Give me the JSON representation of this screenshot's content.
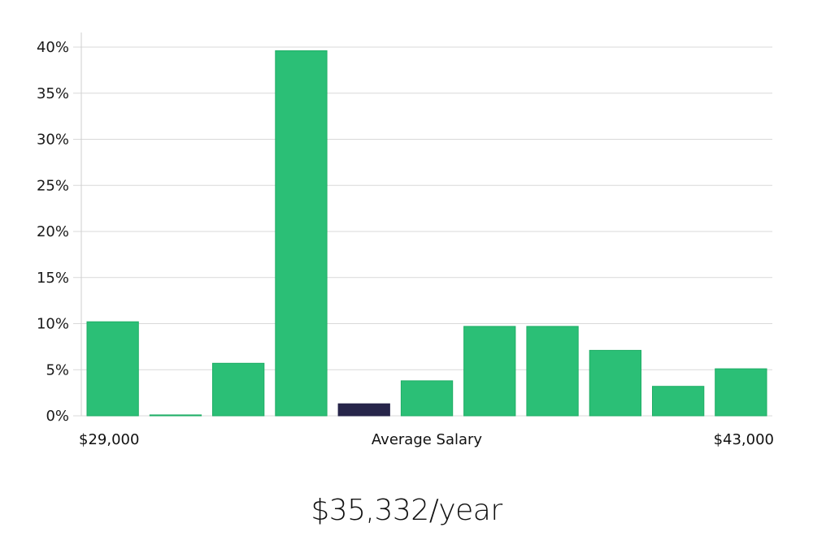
{
  "chart_data": {
    "type": "bar",
    "title": "",
    "xlabel": "Average Salary",
    "ylabel": "",
    "x_range_labels": {
      "min": "$29,000",
      "max": "$43,000"
    },
    "ylim": [
      0,
      42
    ],
    "yticks": [
      0,
      5,
      10,
      15,
      20,
      25,
      30,
      35,
      40
    ],
    "ytick_labels": [
      "0%",
      "5%",
      "10%",
      "15%",
      "20%",
      "25%",
      "30%",
      "35%",
      "40%"
    ],
    "values": [
      10.2,
      0.1,
      5.7,
      39.6,
      1.3,
      3.8,
      9.7,
      9.7,
      7.1,
      3.2,
      5.1
    ],
    "highlight_index": 4,
    "colors": {
      "bar": "#2bbf76",
      "bar_border": "#1fae66",
      "highlight": "#27254a"
    },
    "grid": true
  },
  "summary": {
    "salary_text": "$35,332/year"
  }
}
